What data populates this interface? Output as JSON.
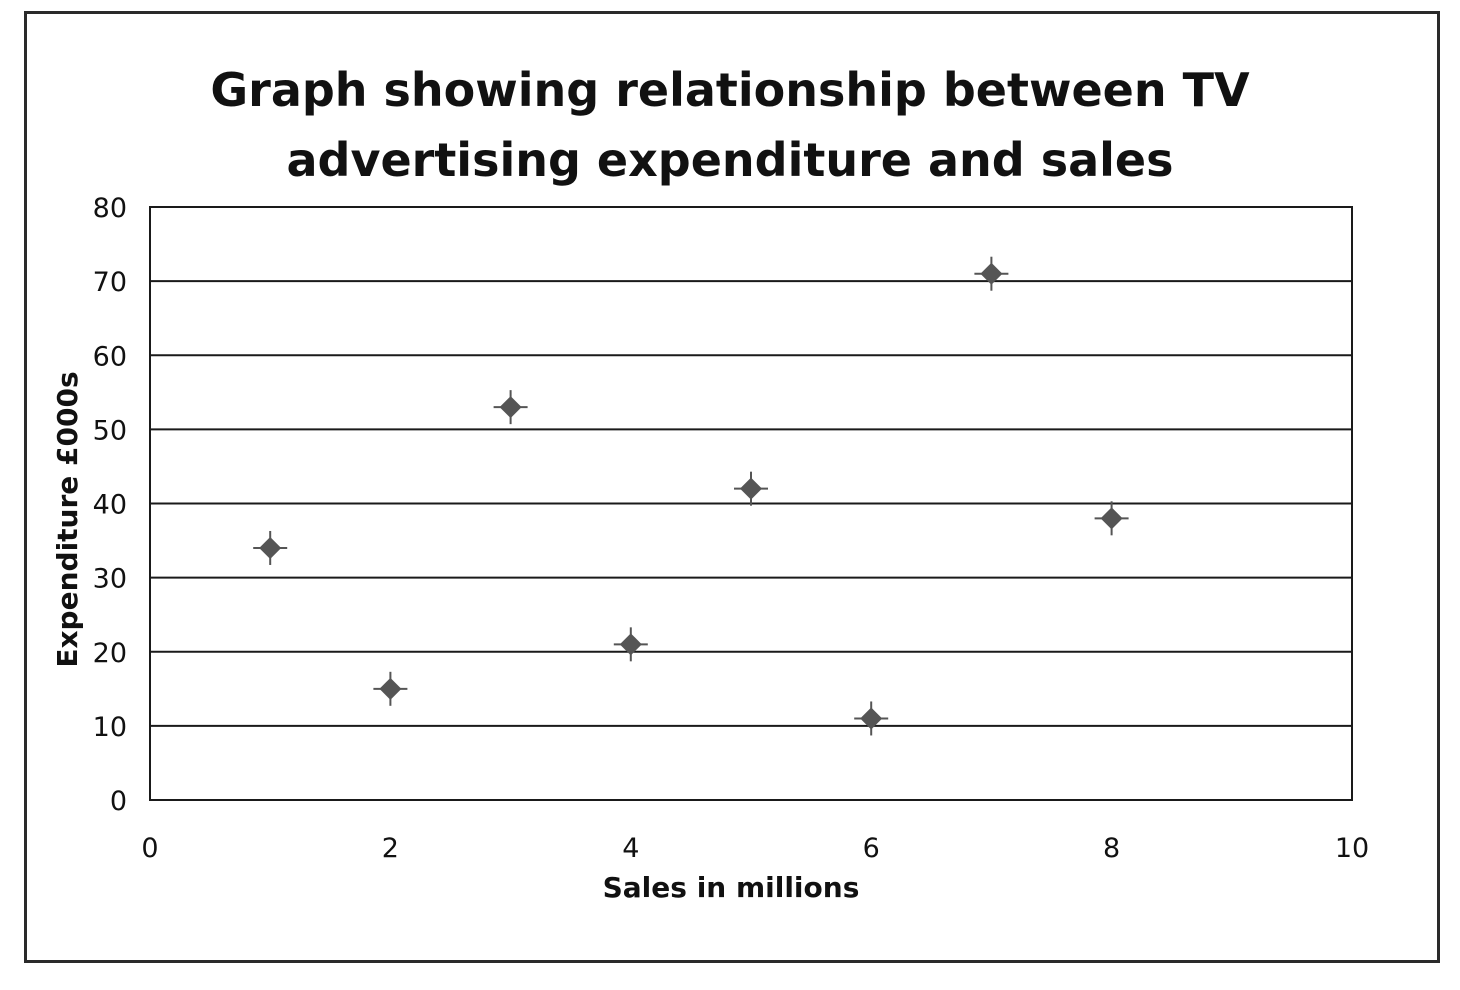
{
  "chart_data": {
    "type": "scatter",
    "title_lines": [
      "Graph showing relationship between TV",
      "advertising expenditure and sales"
    ],
    "xlabel": "Sales in millions",
    "ylabel": "Expenditure £000s",
    "xlim": [
      0,
      10
    ],
    "ylim": [
      0,
      80
    ],
    "x_ticks": [
      0,
      2,
      4,
      6,
      8,
      10
    ],
    "y_ticks": [
      0,
      10,
      20,
      30,
      40,
      50,
      60,
      70,
      80
    ],
    "grid": "horizontal",
    "legend": "none",
    "marker": "diamond-cross",
    "marker_color": "#555555",
    "points": [
      {
        "x": 1,
        "y": 34
      },
      {
        "x": 2,
        "y": 15
      },
      {
        "x": 3,
        "y": 53
      },
      {
        "x": 4,
        "y": 21
      },
      {
        "x": 5,
        "y": 42
      },
      {
        "x": 6,
        "y": 11
      },
      {
        "x": 7,
        "y": 71
      },
      {
        "x": 8,
        "y": 38
      }
    ]
  }
}
